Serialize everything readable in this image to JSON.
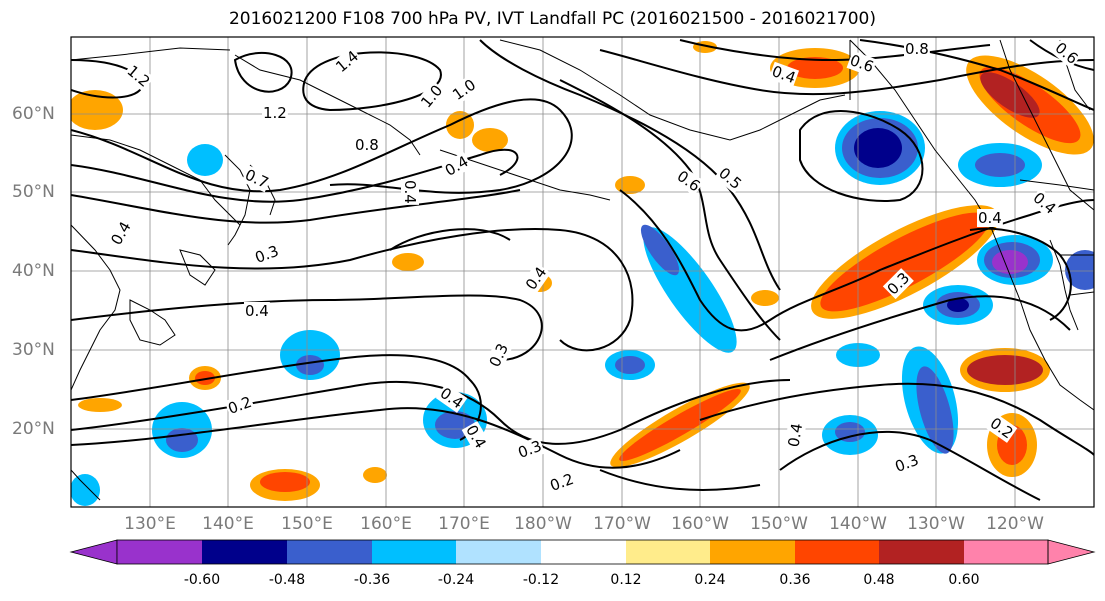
{
  "title": "2016021200 F108 700 hPa PV, IVT Landfall PC (2016021500 - 2016021700)",
  "lat_labels": [
    "60°N",
    "50°N",
    "40°N",
    "30°N",
    "20°N"
  ],
  "lon_labels": [
    "130°E",
    "140°E",
    "150°E",
    "160°E",
    "170°E",
    "180°W",
    "170°W",
    "160°W",
    "150°W",
    "140°W",
    "130°W",
    "120°W"
  ],
  "contour_labels": [
    "1.4",
    "1.2",
    "1.0",
    "1.0",
    "1.2",
    "0.8",
    "0.8",
    "0.7",
    "0.6",
    "0.6",
    "0.6",
    "0.5",
    "0.4",
    "0.4",
    "0.4",
    "0.4",
    "0.4",
    "0.4",
    "0.4",
    "0.4",
    "0.4",
    "0.3",
    "0.3",
    "0.3",
    "0.3",
    "0.3",
    "0.2",
    "0.2",
    "0.2",
    "0.4",
    "0.4"
  ],
  "colorbar": {
    "colors": [
      "#9932cc",
      "#00008b",
      "#3a5fcd",
      "#00bfff",
      "#b0e2ff",
      "#ffffff",
      "#ffec8b",
      "#ffa500",
      "#ff4500",
      "#b22222",
      "#ff82ab"
    ],
    "tick_labels": [
      "-0.60",
      "-0.48",
      "-0.36",
      "-0.24",
      "-0.12",
      "0.12",
      "0.24",
      "0.36",
      "0.48",
      "0.60"
    ]
  }
}
